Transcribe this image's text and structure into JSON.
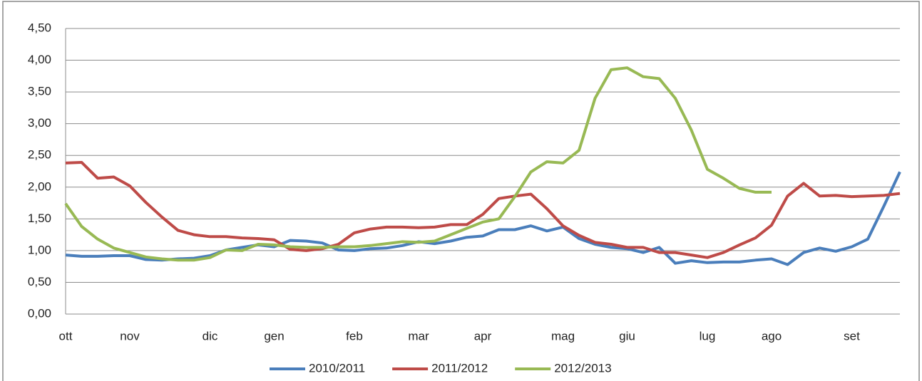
{
  "chart_data": {
    "type": "line",
    "categories": [
      "ott",
      null,
      null,
      null,
      "nov",
      null,
      null,
      null,
      null,
      "dic",
      null,
      null,
      null,
      "gen",
      null,
      null,
      null,
      null,
      "feb",
      null,
      null,
      null,
      "mar",
      null,
      null,
      null,
      "apr",
      null,
      null,
      null,
      null,
      "mag",
      null,
      null,
      null,
      "giu",
      null,
      null,
      null,
      null,
      "lug",
      null,
      null,
      null,
      "ago",
      null,
      null,
      null,
      null,
      "set",
      null,
      null,
      null
    ],
    "series": [
      {
        "name": "2010/2011",
        "color": "#4a7ebb",
        "values": [
          0.93,
          0.91,
          0.91,
          0.92,
          0.92,
          0.86,
          0.85,
          0.87,
          0.88,
          0.92,
          1.01,
          1.05,
          1.09,
          1.06,
          1.16,
          1.15,
          1.12,
          1.01,
          1.0,
          1.03,
          1.04,
          1.08,
          1.14,
          1.11,
          1.15,
          1.21,
          1.23,
          1.33,
          1.33,
          1.39,
          1.31,
          1.37,
          1.19,
          1.1,
          1.05,
          1.03,
          0.97,
          1.05,
          0.8,
          0.84,
          0.81,
          0.82,
          0.82,
          0.85,
          0.87,
          0.78,
          0.97,
          1.04,
          0.99,
          1.06,
          1.18,
          1.7,
          2.24
        ]
      },
      {
        "name": "2011/2012",
        "color": "#be4b48",
        "values": [
          2.38,
          2.39,
          2.14,
          2.16,
          2.02,
          1.76,
          1.53,
          1.32,
          1.25,
          1.22,
          1.22,
          1.2,
          1.19,
          1.17,
          1.02,
          1.0,
          1.03,
          1.1,
          1.28,
          1.34,
          1.37,
          1.37,
          1.36,
          1.37,
          1.41,
          1.41,
          1.57,
          1.82,
          1.86,
          1.89,
          1.66,
          1.39,
          1.24,
          1.13,
          1.1,
          1.05,
          1.05,
          0.97,
          0.97,
          0.93,
          0.89,
          0.97,
          1.09,
          1.2,
          1.4,
          1.86,
          2.06,
          1.86,
          1.87,
          1.85,
          1.86,
          1.87,
          1.9
        ]
      },
      {
        "name": "2012/2013",
        "color": "#98b954",
        "values": [
          1.74,
          1.38,
          1.18,
          1.04,
          0.97,
          0.9,
          0.87,
          0.85,
          0.85,
          0.89,
          1.01,
          1.0,
          1.1,
          1.09,
          1.06,
          1.05,
          1.05,
          1.06,
          1.06,
          1.08,
          1.11,
          1.14,
          1.13,
          1.15,
          1.25,
          1.35,
          1.45,
          1.5,
          1.85,
          2.24,
          2.4,
          2.38,
          2.58,
          3.4,
          3.85,
          3.88,
          3.74,
          3.71,
          3.4,
          2.9,
          2.28,
          2.14,
          1.98,
          1.92,
          1.92,
          null,
          null,
          null,
          null,
          null,
          null,
          null,
          null
        ]
      }
    ],
    "ylim": [
      0,
      4.5
    ],
    "yticks": [
      {
        "value": 0,
        "label": "0,00"
      },
      {
        "value": 0.5,
        "label": "0,50"
      },
      {
        "value": 1,
        "label": "1,00"
      },
      {
        "value": 1.5,
        "label": "1,50"
      },
      {
        "value": 2,
        "label": "2,00"
      },
      {
        "value": 2.5,
        "label": "2,50"
      },
      {
        "value": 3,
        "label": "3,00"
      },
      {
        "value": 3.5,
        "label": "3,50"
      },
      {
        "value": 4,
        "label": "4,00"
      },
      {
        "value": 4.5,
        "label": "4,50"
      }
    ],
    "grid": true,
    "legend": "bottom"
  }
}
